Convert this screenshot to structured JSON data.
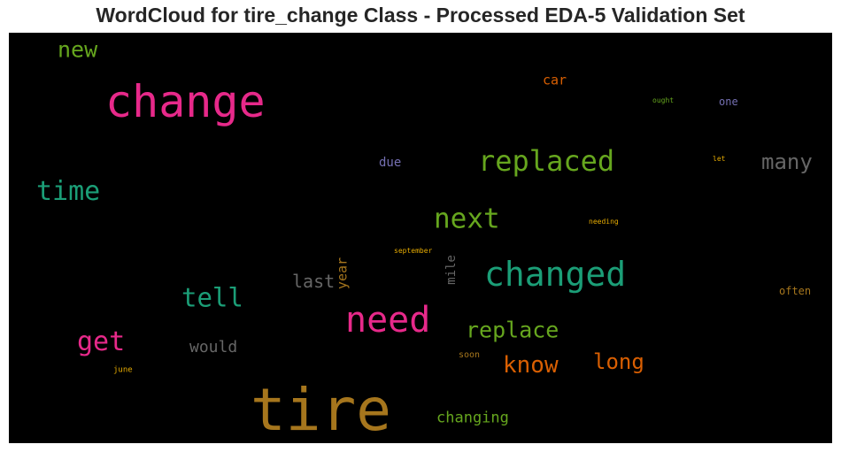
{
  "title": "WordCloud for tire_change Class - Processed EDA-5 Validation Set",
  "chart_data": {
    "type": "wordcloud",
    "words": [
      {
        "text": "tire",
        "color": "#a6761d",
        "weight": 1.0
      },
      {
        "text": "change",
        "color": "#e7298a",
        "weight": 0.86
      },
      {
        "text": "need",
        "color": "#e7298a",
        "weight": 0.66
      },
      {
        "text": "changed",
        "color": "#1b9e77",
        "weight": 0.62
      },
      {
        "text": "replaced",
        "color": "#66a61e",
        "weight": 0.52
      },
      {
        "text": "next",
        "color": "#66a61e",
        "weight": 0.5
      },
      {
        "text": "time",
        "color": "#1b9e77",
        "weight": 0.49
      },
      {
        "text": "tell",
        "color": "#1b9e77",
        "weight": 0.47
      },
      {
        "text": "get",
        "color": "#e7298a",
        "weight": 0.46
      },
      {
        "text": "know",
        "color": "#d95f02",
        "weight": 0.42
      },
      {
        "text": "replace",
        "color": "#66a61e",
        "weight": 0.42
      },
      {
        "text": "long",
        "color": "#d95f02",
        "weight": 0.41
      },
      {
        "text": "many",
        "color": "#666666",
        "weight": 0.41
      },
      {
        "text": "new",
        "color": "#66a61e",
        "weight": 0.4
      },
      {
        "text": "last",
        "color": "#666666",
        "weight": 0.35
      },
      {
        "text": "would",
        "color": "#666666",
        "weight": 0.32
      },
      {
        "text": "changing",
        "color": "#66a61e",
        "weight": 0.3
      },
      {
        "text": "car",
        "color": "#d95f02",
        "weight": 0.28
      },
      {
        "text": "year",
        "color": "#a6761d",
        "weight": 0.28
      },
      {
        "text": "due",
        "color": "#7570b3",
        "weight": 0.24
      },
      {
        "text": "mile",
        "color": "#666666",
        "weight": 0.24
      },
      {
        "text": "often",
        "color": "#a6761d",
        "weight": 0.22
      },
      {
        "text": "one",
        "color": "#7570b3",
        "weight": 0.22
      },
      {
        "text": "soon",
        "color": "#a6761d",
        "weight": 0.19
      },
      {
        "text": "june",
        "color": "#e6ab02",
        "weight": 0.18
      },
      {
        "text": "ought",
        "color": "#66a61e",
        "weight": 0.17
      },
      {
        "text": "let",
        "color": "#e6ab02",
        "weight": 0.17
      },
      {
        "text": "needing",
        "color": "#e6ab02",
        "weight": 0.17
      },
      {
        "text": "september",
        "color": "#e6ab02",
        "weight": 0.17
      }
    ]
  }
}
